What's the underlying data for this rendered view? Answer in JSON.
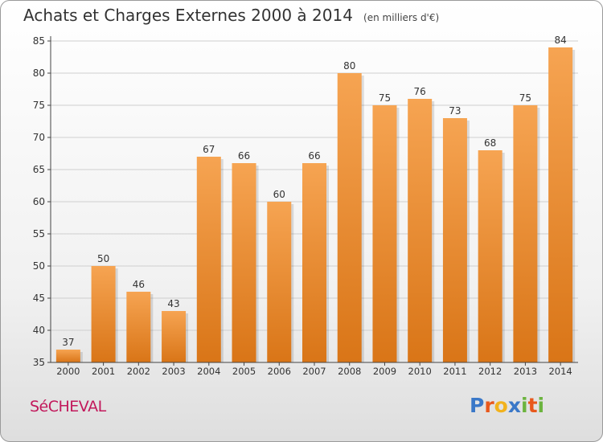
{
  "header": {
    "title": "Achats et Charges Externes 2000 à 2014",
    "subtitle": "(en milliers d'€)"
  },
  "footer": {
    "commune": "SéCHEVAL",
    "brand_letters": [
      "P",
      "r",
      "o",
      "x",
      "i",
      "t",
      "i"
    ],
    "brand_colors": [
      "#3a78c8",
      "#e8581c",
      "#f2b21c",
      "#3a78c8",
      "#6cb43f",
      "#e8581c",
      "#6cb43f"
    ]
  },
  "colors": {
    "bar_light": "#f6a452",
    "bar_dark": "#d97517",
    "grid": "#cfcfcf",
    "axis": "#444444",
    "label": "#333333"
  },
  "chart_data": {
    "type": "bar",
    "title": "Achats et Charges Externes 2000 à 2014",
    "subtitle": "(en milliers d'€)",
    "categories": [
      "2000",
      "2001",
      "2002",
      "2003",
      "2004",
      "2005",
      "2006",
      "2007",
      "2008",
      "2009",
      "2010",
      "2011",
      "2012",
      "2013",
      "2014"
    ],
    "values": [
      37,
      50,
      46,
      43,
      67,
      66,
      60,
      66,
      80,
      75,
      76,
      73,
      68,
      75,
      84
    ],
    "ylim": [
      35,
      85
    ],
    "yticks": [
      35,
      40,
      45,
      50,
      55,
      60,
      65,
      70,
      75,
      80,
      85
    ],
    "grid": true,
    "legend": "none"
  }
}
